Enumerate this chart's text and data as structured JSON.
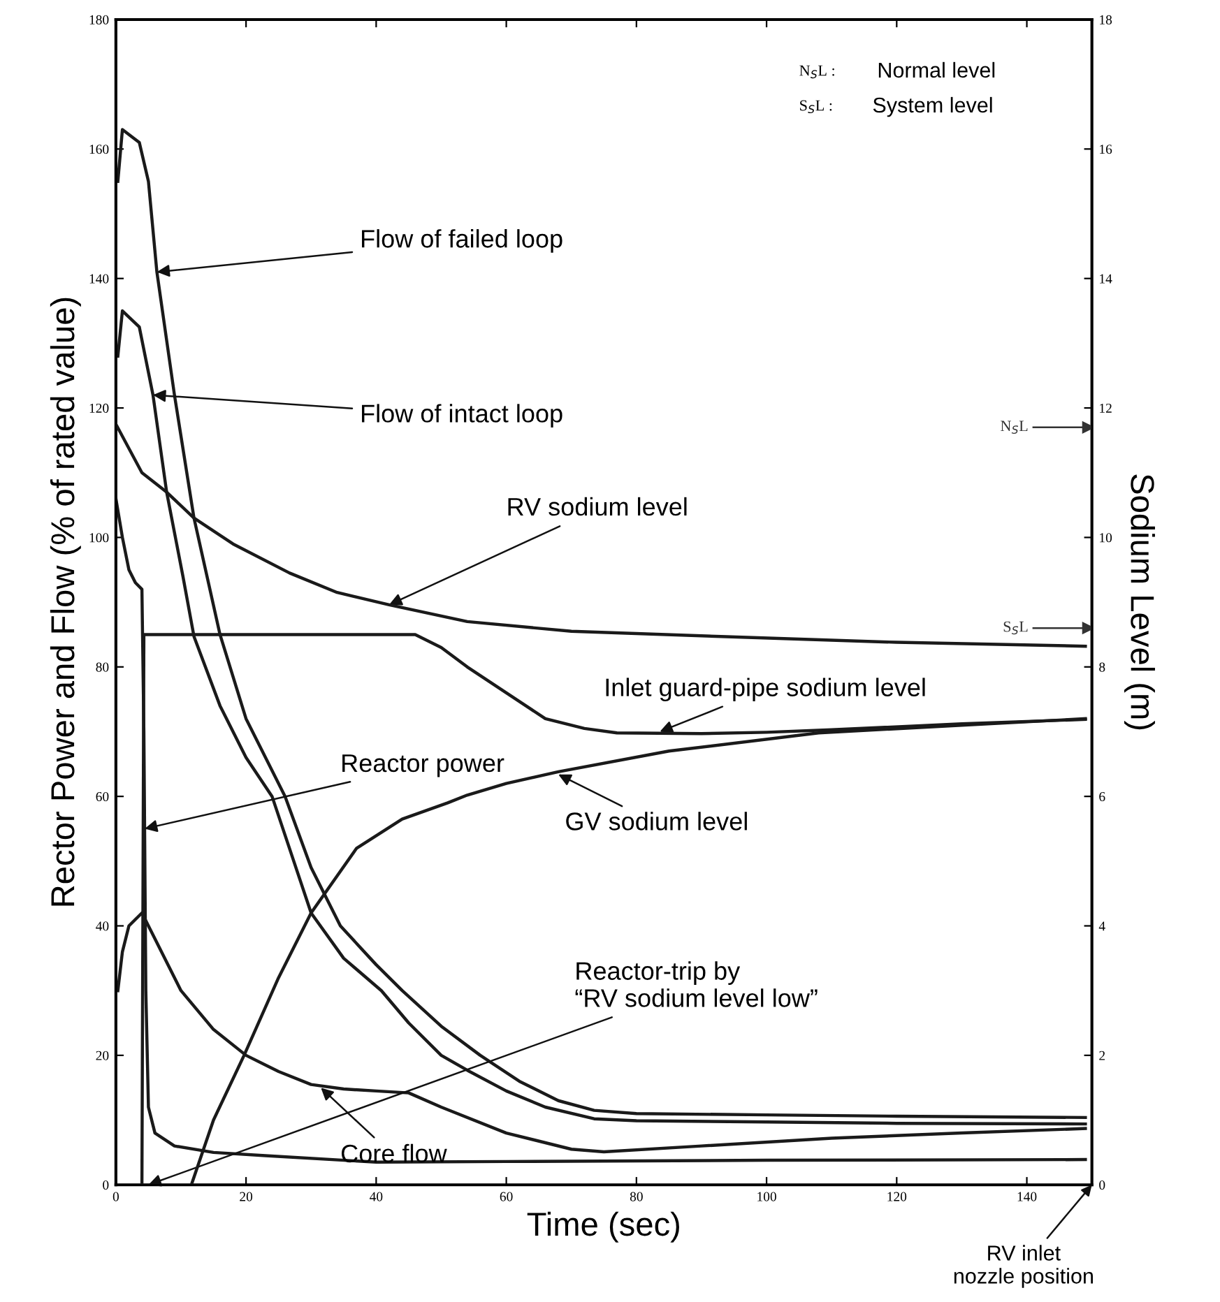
{
  "chart_data": {
    "type": "line",
    "xlabel": "Time (sec)",
    "ylabel": "Rector Power and Flow (% of rated value)",
    "y2label": "Sodium Level (m)",
    "xlim": [
      0,
      150
    ],
    "xticks": [
      0,
      20,
      40,
      60,
      80,
      100,
      120,
      140
    ],
    "ylim": [
      0,
      180
    ],
    "yticks": [
      0,
      20,
      40,
      60,
      80,
      100,
      120,
      140,
      160,
      180
    ],
    "y2lim": [
      0,
      18
    ],
    "y2ticks": [
      0,
      2,
      4,
      6,
      8,
      10,
      12,
      14,
      16,
      18
    ],
    "grid": false,
    "legend": false,
    "marker": "none",
    "line_style": "solid",
    "series": [
      {
        "color": "#1a1a1a",
        "x": [
          0.3,
          1,
          3.6,
          5,
          6.3,
          9,
          12,
          14,
          16,
          20,
          26,
          30,
          34.5,
          40,
          44,
          50,
          56,
          62,
          68,
          73.5,
          80,
          100,
          120,
          149
        ],
        "values": [
          155,
          163,
          161,
          155,
          141,
          122,
          103,
          94,
          85,
          72,
          60,
          49,
          40,
          34,
          30,
          24.5,
          20,
          16,
          13,
          11.5,
          11,
          10.8,
          10.6,
          10.4
        ]
      },
      {
        "color": "#1a1a1a",
        "x": [
          0.3,
          1,
          3.6,
          5.7,
          7.8,
          10.3,
          12,
          16,
          20,
          24,
          30,
          35,
          40.8,
          45,
          50,
          54,
          60,
          66,
          73.5,
          80,
          100,
          120,
          149
        ],
        "values": [
          128,
          135,
          132.5,
          122,
          107,
          94,
          84.7,
          74,
          66,
          60,
          42,
          35,
          30,
          25,
          20,
          17.7,
          14.5,
          12,
          10.2,
          9.9,
          9.7,
          9.5,
          9.4
        ]
      },
      {
        "color": "#1a1a1a",
        "x": [
          0,
          1,
          2,
          3,
          4,
          4.3,
          4.6,
          5,
          6,
          9,
          15,
          23,
          40,
          60,
          100,
          149
        ],
        "values": [
          106,
          100,
          95,
          93,
          92,
          70,
          30,
          12,
          8,
          6,
          5,
          4.5,
          3.5,
          3.6,
          3.8,
          3.9
        ]
      },
      {
        "color": "#1a1a1a",
        "x": [
          0.3,
          1,
          2,
          4,
          6,
          10,
          15,
          20,
          25,
          30,
          35,
          40,
          45,
          50,
          60,
          70,
          75,
          90,
          110,
          130,
          149
        ],
        "values": [
          30,
          36,
          40,
          42,
          38,
          30,
          24,
          20,
          17.5,
          15.5,
          14.8,
          14.5,
          14.2,
          12,
          8,
          5.5,
          5.1,
          6,
          7.2,
          8,
          8.7
        ]
      },
      {
        "color": "#1a1a1a",
        "axis": "y2",
        "x": [
          0,
          4,
          7.8,
          12,
          18,
          26.7,
          34,
          42,
          54,
          70,
          93,
          120,
          149
        ],
        "values": [
          11.75,
          11.0,
          10.7,
          10.3,
          9.9,
          9.45,
          9.15,
          8.96,
          8.7,
          8.55,
          8.47,
          8.38,
          8.32
        ]
      },
      {
        "color": "#1a1a1a",
        "axis": "y2",
        "x": [
          4,
          4.3,
          10,
          20,
          30,
          40,
          46,
          50,
          54,
          60,
          66,
          72,
          77,
          90,
          100,
          110,
          130,
          149
        ],
        "values": [
          0,
          8.5,
          8.5,
          8.5,
          8.5,
          8.5,
          8.5,
          8.3,
          8.0,
          7.6,
          7.2,
          7.05,
          6.98,
          6.97,
          6.99,
          7.03,
          7.12,
          7.19
        ]
      },
      {
        "color": "#1a1a1a",
        "axis": "y2",
        "x": [
          11.6,
          15,
          19.7,
          25,
          30,
          37,
          44,
          51,
          54,
          60,
          68,
          85,
          108,
          130,
          149
        ],
        "values": [
          0,
          1.0,
          2.0,
          3.2,
          4.2,
          5.2,
          5.65,
          5.9,
          6.02,
          6.2,
          6.38,
          6.7,
          6.98,
          7.1,
          7.2
        ]
      }
    ],
    "ref_lines": [
      {
        "axis": "y2",
        "value": 11.7,
        "label": "N$_{S}$L"
      },
      {
        "axis": "y2",
        "value": 8.6,
        "label": "S$_{S}$L"
      }
    ],
    "annotations": [
      {
        "text": "Flow of failed loop",
        "x": 6.3,
        "y": 141
      },
      {
        "text": "Flow of intact loop",
        "x": 5.7,
        "y": 122
      },
      {
        "text": "RV sodium level",
        "x": 42,
        "y": 89.6
      },
      {
        "text": "Inlet guard-pipe sodium level",
        "x": 83.6,
        "y": 70
      },
      {
        "text": "Reactor power",
        "x": 4.4,
        "y": 55
      },
      {
        "text": "GV sodium level",
        "x": 68,
        "y": 63.4
      },
      {
        "text": "Reactor-trip by\n“RV sodium level low”",
        "x": 5,
        "y": 0
      },
      {
        "text": "Core flow",
        "x": 31.5,
        "y": 15
      },
      "N$_{S}$L :",
      "S$_{S}$L :",
      "Normal level",
      "System level",
      "RV inlet\nnozzle position"
    ]
  }
}
